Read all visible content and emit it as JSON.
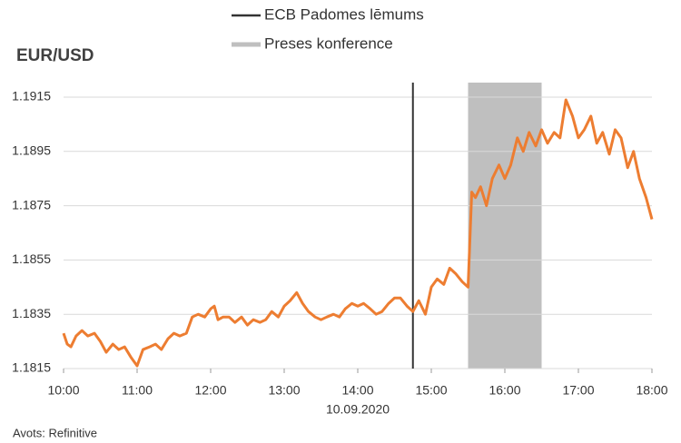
{
  "chart_data": {
    "type": "line",
    "title": "EUR/USD",
    "x_label": "10.09.2020",
    "source": "Avots: Refinitive",
    "xlim": [
      10,
      18
    ],
    "xticks": [
      {
        "value": 10,
        "label": "10:00"
      },
      {
        "value": 11,
        "label": "11:00"
      },
      {
        "value": 12,
        "label": "12:00"
      },
      {
        "value": 13,
        "label": "13:00"
      },
      {
        "value": 14,
        "label": "14:00"
      },
      {
        "value": 15,
        "label": "15:00"
      },
      {
        "value": 16,
        "label": "16:00"
      },
      {
        "value": 17,
        "label": "17:00"
      },
      {
        "value": 18,
        "label": "18:00"
      }
    ],
    "ylim": [
      1.1815,
      1.1915
    ],
    "yticks": [
      1.1815,
      1.1835,
      1.1855,
      1.1875,
      1.1895,
      1.1915
    ],
    "grid": true,
    "events": [
      {
        "name": "ECB Padomes lēmums",
        "color": "#333333",
        "x": 14.75
      },
      {
        "name": "Preses konference",
        "color": "#bfbfbf",
        "x": [
          15.5,
          16.5
        ]
      }
    ],
    "x": [
      10.0,
      10.05,
      10.1,
      10.17,
      10.25,
      10.33,
      10.42,
      10.5,
      10.58,
      10.67,
      10.75,
      10.83,
      10.92,
      11.0,
      11.08,
      11.17,
      11.25,
      11.33,
      11.42,
      11.5,
      11.58,
      11.67,
      11.75,
      11.83,
      11.92,
      12.0,
      12.05,
      12.1,
      12.17,
      12.25,
      12.33,
      12.42,
      12.5,
      12.58,
      12.67,
      12.75,
      12.83,
      12.92,
      13.0,
      13.08,
      13.17,
      13.25,
      13.33,
      13.42,
      13.5,
      13.58,
      13.67,
      13.75,
      13.83,
      13.92,
      14.0,
      14.08,
      14.17,
      14.25,
      14.33,
      14.42,
      14.5,
      14.58,
      14.67,
      14.75,
      14.83,
      14.92,
      15.0,
      15.08,
      15.17,
      15.25,
      15.33,
      15.42,
      15.5,
      15.55,
      15.6,
      15.67,
      15.75,
      15.83,
      15.92,
      16.0,
      16.08,
      16.17,
      16.25,
      16.33,
      16.42,
      16.5,
      16.58,
      16.67,
      16.75,
      16.83,
      16.92,
      17.0,
      17.08,
      17.17,
      17.25,
      17.33,
      17.42,
      17.5,
      17.58,
      17.67,
      17.75,
      17.83,
      17.92,
      18.0
    ],
    "series": [
      {
        "name": "EUR/USD",
        "color": "#ed7d31",
        "values": [
          1.1828,
          1.1824,
          1.1823,
          1.1827,
          1.1829,
          1.1827,
          1.1828,
          1.1825,
          1.1821,
          1.1824,
          1.1822,
          1.1823,
          1.1819,
          1.1816,
          1.1822,
          1.1823,
          1.1824,
          1.1822,
          1.1826,
          1.1828,
          1.1827,
          1.1828,
          1.1834,
          1.1835,
          1.1834,
          1.1837,
          1.1838,
          1.1833,
          1.1834,
          1.1834,
          1.1832,
          1.1834,
          1.1831,
          1.1833,
          1.1832,
          1.1833,
          1.1836,
          1.1834,
          1.1838,
          1.184,
          1.1843,
          1.1839,
          1.1836,
          1.1834,
          1.1833,
          1.1834,
          1.1835,
          1.1834,
          1.1837,
          1.1839,
          1.1838,
          1.1839,
          1.1837,
          1.1835,
          1.1836,
          1.1839,
          1.1841,
          1.1841,
          1.1838,
          1.1836,
          1.184,
          1.1835,
          1.1845,
          1.1848,
          1.1846,
          1.1852,
          1.185,
          1.1847,
          1.1845,
          1.188,
          1.1878,
          1.1882,
          1.1875,
          1.1885,
          1.189,
          1.1885,
          1.189,
          1.19,
          1.1895,
          1.1902,
          1.1897,
          1.1903,
          1.1898,
          1.1902,
          1.19,
          1.1914,
          1.1908,
          1.19,
          1.1903,
          1.1908,
          1.1898,
          1.1902,
          1.1894,
          1.1903,
          1.19,
          1.1889,
          1.1895,
          1.1885,
          1.1878,
          1.187
        ]
      }
    ]
  }
}
